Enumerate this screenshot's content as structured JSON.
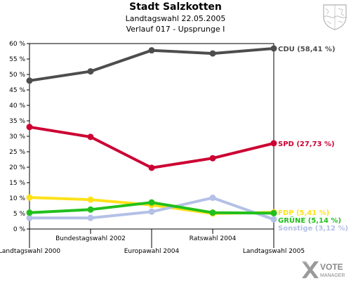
{
  "header": {
    "title": "Stadt Salzkotten",
    "subtitle1": "Landtagswahl 22.05.2005",
    "subtitle2": "Verlauf 017 - Upsprunge I"
  },
  "chart_data": {
    "type": "line",
    "categories": [
      "Landtagswahl 2000",
      "Bundestagswahl 2002",
      "Europawahl 2004",
      "Ratswahl 2004",
      "Landtagswahl 2005"
    ],
    "ylim": [
      0,
      60
    ],
    "yticks": [
      0,
      5,
      10,
      15,
      20,
      25,
      30,
      35,
      40,
      45,
      50,
      55,
      60
    ],
    "ytick_labels": [
      "0 %",
      "5 %",
      "10 %",
      "15 %",
      "20 %",
      "25 %",
      "30 %",
      "35 %",
      "40 %",
      "45 %",
      "50 %",
      "55 %",
      "60 %"
    ],
    "grid": false,
    "series": [
      {
        "name": "FDP",
        "end_label": "FDP (5,41 %)",
        "color": "#ffe11a",
        "values": [
          10.2,
          9.5,
          7.8,
          5.0,
          5.41
        ]
      },
      {
        "name": "Sonstige",
        "end_label": "Sonstige (3,12 %)",
        "color": "#b4c0e6",
        "values": [
          3.6,
          3.6,
          5.6,
          10.1,
          3.12
        ]
      },
      {
        "name": "GRÜNE",
        "end_label": "GRÜNE (5,14 %)",
        "color": "#22c01c",
        "values": [
          5.3,
          6.3,
          8.6,
          5.3,
          5.14
        ]
      },
      {
        "name": "SPD",
        "end_label": "SPD (27,73 %)",
        "color": "#cc0033",
        "values": [
          33.0,
          29.8,
          19.8,
          22.9,
          27.73
        ]
      },
      {
        "name": "CDU",
        "end_label": "CDU (58,41 %)",
        "color": "#4d4d4d",
        "values": [
          48.0,
          51.0,
          57.8,
          56.8,
          58.41
        ]
      }
    ]
  },
  "logo": {
    "text_top": "VOTE",
    "text_bottom": "MANAGER"
  }
}
